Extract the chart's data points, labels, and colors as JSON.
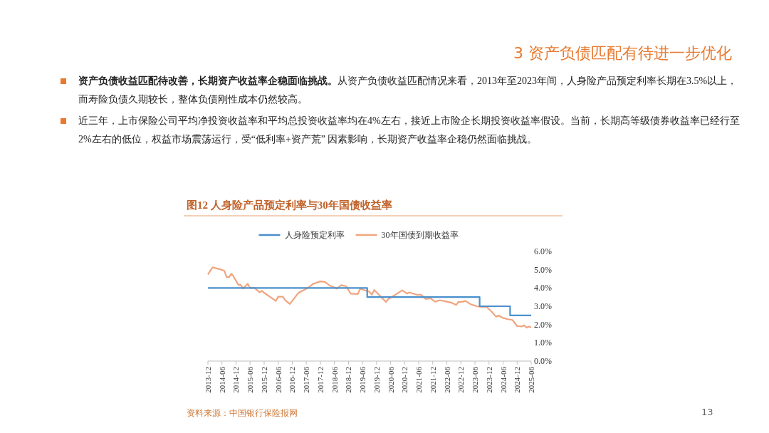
{
  "chart_data": {
    "type": "line",
    "title": "图12 人身险产品预定利率与30年国债收益率",
    "annotations": [
      "3 资产负债匹配有待进一步优化",
      "资产负债收益匹配待改善，长期资产收益率企稳面临挑战。",
      "从资产负债收益匹配情况来看，2013年至2023年间，人身险产品预定利率长期在3.5%以上，而寿险负债久期较长，整体负债刚性成本仍然较高。",
      "近三年，上市保险公司平均净投资收益率和平均总投资收益率均在4%左右，接近上市险企长期投资收益率假设。当前，长期高等级债券收益率已经行至2%左右的低位，权益市场震荡运行，受“低利率+资产荒” 因素影响，长期资产收益率企稳仍然面临挑战。",
      "资料来源：中国银行保险报网",
      "13"
    ],
    "series": [
      {
        "name": "人身险预定利率",
        "type": "step",
        "color": "#4a8fcc",
        "x": [
          "2013-12",
          "2019-08",
          "2023-08",
          "2024-09",
          "2025-06"
        ],
        "values": [
          4.0,
          3.5,
          3.0,
          2.5,
          2.5
        ]
      },
      {
        "name": "30年国债到期收益率",
        "type": "line",
        "color": "#f0a47e",
        "x": [
          "2013-12",
          "2014-02",
          "2014-04",
          "2014-05",
          "2014-07",
          "2014-08",
          "2014-09",
          "2014-10",
          "2014-11",
          "2015-01",
          "2015-02",
          "2015-03",
          "2015-05",
          "2015-06",
          "2015-08",
          "2015-10",
          "2015-11",
          "2015-12",
          "2016-03",
          "2016-05",
          "2016-06",
          "2016-08",
          "2016-09",
          "2016-11",
          "2017-02",
          "2017-03",
          "2017-05",
          "2017-07",
          "2017-09",
          "2017-12",
          "2018-02",
          "2018-04",
          "2018-07",
          "2018-09",
          "2018-11",
          "2019-01",
          "2019-04",
          "2019-05",
          "2019-09",
          "2019-10",
          "2019-11",
          "2020-01",
          "2020-04",
          "2020-05",
          "2020-08",
          "2020-11",
          "2021-01",
          "2021-02",
          "2021-05",
          "2021-07",
          "2021-09",
          "2021-11",
          "2022-01",
          "2022-03",
          "2022-06",
          "2022-08",
          "2022-10",
          "2022-11",
          "2022-12",
          "2023-02",
          "2023-04",
          "2023-07",
          "2023-09",
          "2023-11",
          "2024-01",
          "2024-03",
          "2024-04",
          "2024-06",
          "2024-08",
          "2024-10",
          "2024-12",
          "2025-02",
          "2025-03",
          "2025-04",
          "2025-05",
          "2025-06"
        ],
        "values": [
          4.74,
          5.13,
          5.06,
          5.03,
          4.94,
          4.59,
          4.59,
          4.78,
          4.62,
          4.17,
          4.17,
          3.97,
          4.23,
          4.0,
          4.0,
          3.76,
          3.84,
          3.73,
          3.47,
          3.29,
          3.52,
          3.52,
          3.33,
          3.12,
          3.63,
          3.76,
          3.89,
          4.03,
          4.23,
          4.36,
          4.33,
          4.13,
          3.96,
          4.16,
          4.09,
          3.69,
          3.67,
          3.96,
          3.79,
          3.63,
          3.89,
          3.63,
          3.23,
          3.39,
          3.63,
          3.87,
          3.69,
          3.76,
          3.63,
          3.63,
          3.39,
          3.43,
          3.25,
          3.33,
          3.25,
          3.19,
          3.07,
          3.25,
          3.23,
          3.29,
          3.12,
          2.99,
          2.96,
          2.96,
          2.72,
          2.43,
          2.49,
          2.36,
          2.29,
          2.25,
          1.92,
          1.89,
          1.96,
          1.83,
          1.89,
          1.83
        ]
      }
    ],
    "xlim": [
      "2013-12",
      "2025-06"
    ],
    "xticks": [
      "2013-12",
      "2014-06",
      "2014-12",
      "2015-06",
      "2015-12",
      "2016-06",
      "2016-12",
      "2017-06",
      "2017-12",
      "2018-06",
      "2018-12",
      "2019-06",
      "2019-12",
      "2020-06",
      "2020-12",
      "2021-06",
      "2021-12",
      "2022-06",
      "2022-12",
      "2023-06",
      "2023-12",
      "2024-06",
      "2024-12",
      "2025-06"
    ],
    "ylim": [
      0,
      6
    ],
    "yticks": [
      {
        "value": 0,
        "label": "0.0%"
      },
      {
        "value": 1,
        "label": "1.0%"
      },
      {
        "value": 2,
        "label": "2.0%"
      },
      {
        "value": 3,
        "label": "3.0%"
      },
      {
        "value": 4,
        "label": "4.0%"
      },
      {
        "value": 5,
        "label": "5.0%"
      },
      {
        "value": 6,
        "label": "6.0%"
      }
    ],
    "legend": "top",
    "grid": false
  }
}
